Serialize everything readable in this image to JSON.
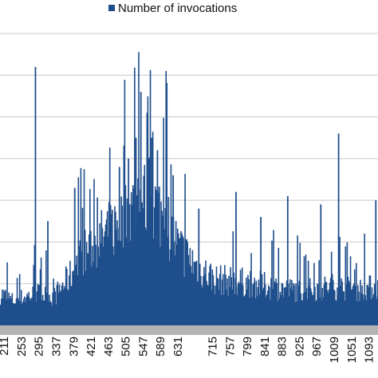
{
  "chart_data": {
    "type": "bar",
    "title": "",
    "xlabel": "",
    "ylabel": "",
    "grid": true,
    "legend": "top-center",
    "color": "#1f4e8c",
    "baseline_color": "#b3b3b3",
    "ylim": [
      0,
      70
    ],
    "y_gridlines": [
      10,
      20,
      30,
      40,
      50,
      60,
      70
    ],
    "tick_labels": [
      "211",
      "253",
      "295",
      "337",
      "379",
      "421",
      "463",
      "505",
      "547",
      "589",
      "631",
      "715",
      "757",
      "799",
      "841",
      "883",
      "925",
      "967",
      "1009",
      "1051",
      "1093"
    ],
    "tick_values": [
      211,
      253,
      295,
      337,
      379,
      421,
      463,
      505,
      547,
      589,
      631,
      715,
      757,
      799,
      841,
      883,
      925,
      967,
      1009,
      1051,
      1093
    ],
    "x_range": [
      201,
      1115
    ],
    "series": [
      {
        "name": "Number of invocations",
        "envelope": {
          "x": [
            201,
            230,
            260,
            290,
            330,
            370,
            400,
            440,
            480,
            520,
            560,
            600,
            630,
            680,
            720,
            800,
            850,
            900,
            960,
            1000,
            1060,
            1115
          ],
          "y": [
            9,
            7,
            8,
            9,
            8,
            14,
            20,
            24,
            28,
            33,
            36,
            30,
            22,
            16,
            13,
            12,
            11,
            10,
            10,
            11,
            10,
            11
          ]
        },
        "spikes": [
          {
            "x": 285,
            "y": 62
          },
          {
            "x": 540,
            "y": 56
          },
          {
            "x": 555,
            "y": 51
          },
          {
            "x": 528,
            "y": 45
          },
          {
            "x": 566,
            "y": 45
          },
          {
            "x": 1018,
            "y": 46
          },
          {
            "x": 488,
            "y": 38
          },
          {
            "x": 510,
            "y": 40
          },
          {
            "x": 580,
            "y": 42
          },
          {
            "x": 618,
            "y": 36
          },
          {
            "x": 380,
            "y": 33
          },
          {
            "x": 770,
            "y": 32
          },
          {
            "x": 895,
            "y": 31
          },
          {
            "x": 975,
            "y": 29
          },
          {
            "x": 1108,
            "y": 30
          },
          {
            "x": 680,
            "y": 28
          },
          {
            "x": 830,
            "y": 26
          },
          {
            "x": 315,
            "y": 25
          }
        ]
      }
    ]
  }
}
